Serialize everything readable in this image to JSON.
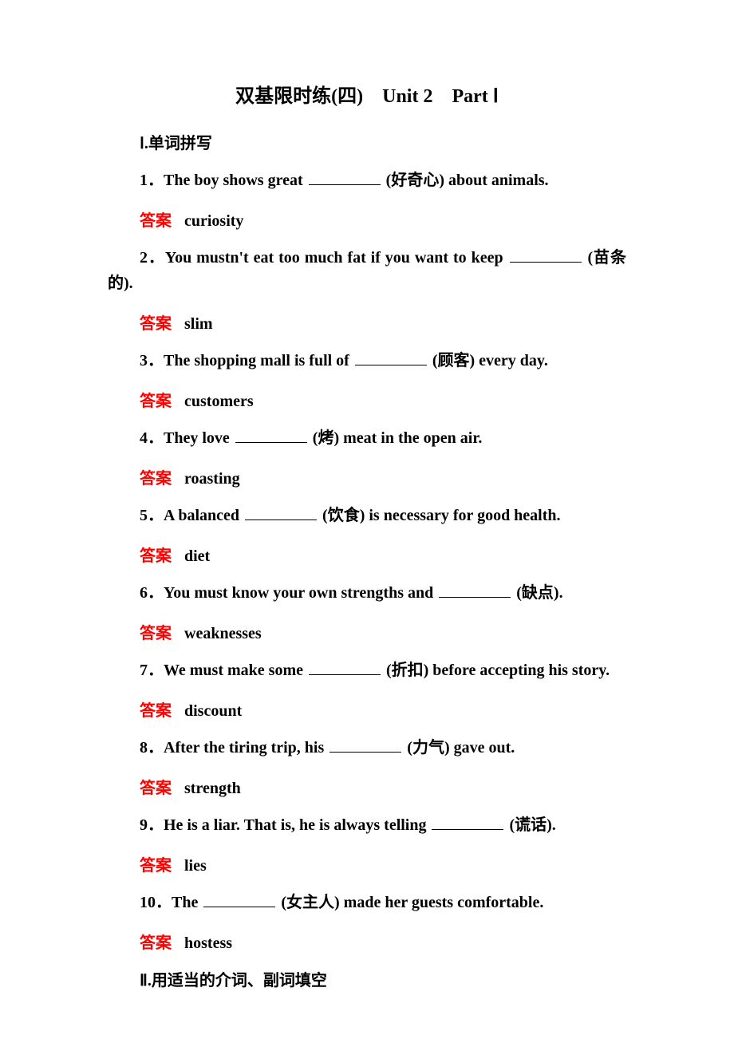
{
  "colors": {
    "answer_label": "#ff0000",
    "text": "#000000",
    "background": "#ffffff"
  },
  "typography": {
    "title_fontsize": 24,
    "body_fontsize": 20,
    "font_weight": "bold"
  },
  "title": "双基限时练(四)　Unit 2　Part Ⅰ",
  "section1": {
    "header": "Ⅰ.单词拼写",
    "items": [
      {
        "prefix": "1．The boy shows great ",
        "hint": " (好奇心) about animals.",
        "answer": "curiosity"
      },
      {
        "prefix": "2．You mustn't eat too much fat if you want to keep ",
        "hint": " (苗条的).",
        "answer": "slim",
        "multiline": true
      },
      {
        "prefix": "3．The shopping mall is full of ",
        "hint": " (顾客) every day.",
        "answer": "customers"
      },
      {
        "prefix": "4．They love ",
        "hint": " (烤) meat in the open air.",
        "answer": "roasting"
      },
      {
        "prefix": "5．A balanced ",
        "hint": " (饮食) is necessary for good health.",
        "answer": "diet"
      },
      {
        "prefix": "6．You must know your own strengths and ",
        "hint": " (缺点).",
        "answer": "weaknesses"
      },
      {
        "prefix": "7．We must make some ",
        "hint": " (折扣) before accepting his story.",
        "answer": "discount",
        "multiline": true
      },
      {
        "prefix": "8．After the tiring trip, his ",
        "hint": " (力气) gave out.",
        "answer": "strength"
      },
      {
        "prefix": "9．He is a liar. That is, he is always telling ",
        "hint": " (谎话).",
        "answer": "lies"
      },
      {
        "prefix": "10．The ",
        "hint": " (女主人) made her guests comfortable.",
        "answer": "hostess"
      }
    ]
  },
  "section2": {
    "header": "Ⅱ.用适当的介词、副词填空"
  },
  "answer_label": "答案"
}
